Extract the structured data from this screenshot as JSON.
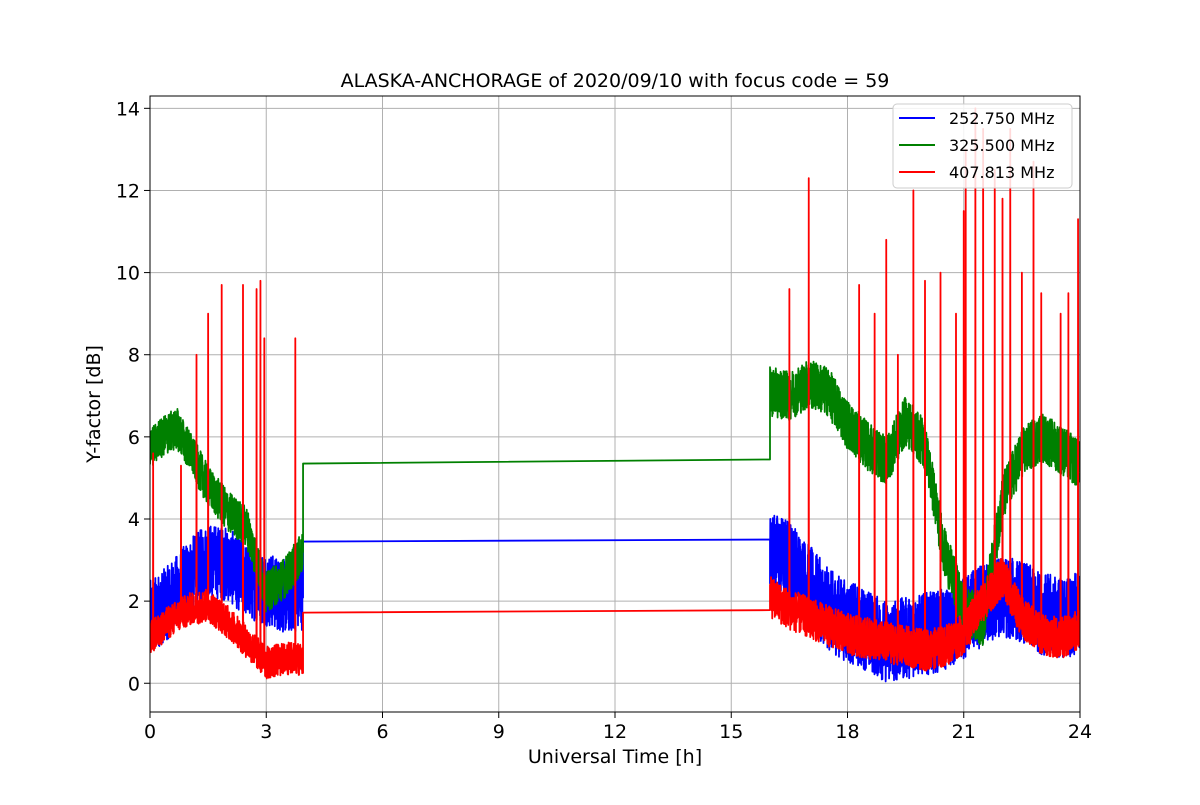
{
  "chart_data": {
    "type": "line",
    "title": "ALASKA-ANCHORAGE of 2020/09/10 with focus code = 59",
    "xlabel": "Universal Time [h]",
    "ylabel": "Y-factor [dB]",
    "xlim": [
      0,
      24
    ],
    "ylim": [
      -0.7,
      14.3
    ],
    "xticks": [
      "0",
      "3",
      "6",
      "9",
      "12",
      "15",
      "18",
      "21",
      "24"
    ],
    "yticks": [
      "0",
      "2",
      "4",
      "6",
      "8",
      "10",
      "12",
      "14"
    ],
    "grid": true,
    "legend_position": "top-right",
    "series": [
      {
        "name": "252.750 MHz",
        "color": "#0000ff",
        "segments": [
          {
            "x": [
              0,
              0.5,
              1.0,
              1.5,
              2.0,
              2.5,
              3.0,
              3.5,
              3.95
            ],
            "base": [
              1.6,
              2.0,
              2.6,
              3.0,
              2.9,
              2.5,
              2.3,
              2.1,
              2.2
            ],
            "noise": 0.9
          },
          {
            "x": [
              3.95,
              16.0
            ],
            "values": [
              3.45,
              3.5
            ]
          },
          {
            "x": [
              16.0,
              16.5,
              17.0,
              17.5,
              18.0,
              18.5,
              19.0,
              19.5,
              20.0,
              20.5,
              21.0,
              21.5,
              22.0,
              22.5,
              23.0,
              23.5,
              24.0
            ],
            "base": [
              3.2,
              3.0,
              2.4,
              1.8,
              1.5,
              1.3,
              1.0,
              1.1,
              1.2,
              1.3,
              1.6,
              1.9,
              2.1,
              2.0,
              1.7,
              1.6,
              1.7
            ],
            "noise": 1.0
          }
        ]
      },
      {
        "name": "325.500 MHz",
        "color": "#008000",
        "segments": [
          {
            "x": [
              0,
              0.3,
              0.7,
              1.0,
              1.5,
              2.0,
              2.5,
              3.0,
              3.5,
              3.95
            ],
            "base": [
              5.7,
              6.0,
              6.2,
              5.7,
              4.8,
              4.2,
              3.8,
              2.2,
              2.6,
              3.2
            ],
            "noise": 0.5
          },
          {
            "x": [
              3.95,
              16.0
            ],
            "values": [
              5.35,
              5.45
            ]
          },
          {
            "x": [
              16.0,
              16.5,
              17.0,
              17.5,
              18.0,
              18.5,
              19.0,
              19.5,
              20.0,
              20.5,
              21.0,
              21.5,
              22.0,
              22.5,
              23.0,
              23.5,
              24.0
            ],
            "base": [
              7.1,
              7.0,
              7.3,
              7.1,
              6.3,
              5.8,
              5.4,
              6.4,
              5.8,
              3.2,
              1.8,
              1.5,
              4.5,
              5.6,
              6.0,
              5.7,
              5.3
            ],
            "noise": 0.6
          }
        ]
      },
      {
        "name": "407.813 MHz",
        "color": "#ff0000",
        "segments": [
          {
            "x": [
              0,
              0.5,
              1.0,
              1.5,
              2.0,
              2.5,
              3.0,
              3.5,
              3.95
            ],
            "base": [
              1.1,
              1.5,
              1.8,
              1.9,
              1.5,
              1.0,
              0.5,
              0.6,
              0.6
            ],
            "noise": 0.4,
            "spikes": [
              [
                0.08,
                5.6
              ],
              [
                0.8,
                5.3
              ],
              [
                1.2,
                8.0
              ],
              [
                1.5,
                9.0
              ],
              [
                1.85,
                9.7
              ],
              [
                2.4,
                9.7
              ],
              [
                2.75,
                9.6
              ],
              [
                2.85,
                9.8
              ],
              [
                2.95,
                8.4
              ],
              [
                3.75,
                8.4
              ]
            ]
          },
          {
            "x": [
              3.95,
              16.0
            ],
            "values": [
              1.72,
              1.78
            ]
          },
          {
            "x": [
              16.0,
              16.5,
              17.0,
              17.5,
              18.0,
              18.5,
              19.0,
              19.5,
              20.0,
              20.5,
              21.0,
              21.5,
              22.0,
              22.5,
              23.0,
              23.5,
              24.0
            ],
            "base": [
              2.1,
              1.8,
              1.6,
              1.4,
              1.2,
              1.1,
              1.0,
              0.9,
              0.8,
              0.9,
              1.2,
              2.0,
              2.6,
              1.6,
              1.2,
              1.1,
              1.3
            ],
            "noise": 0.5,
            "spikes": [
              [
                16.5,
                9.6
              ],
              [
                17.0,
                12.3
              ],
              [
                18.3,
                9.7
              ],
              [
                18.7,
                9.0
              ],
              [
                19.0,
                10.8
              ],
              [
                19.3,
                8.0
              ],
              [
                19.7,
                12.0
              ],
              [
                20.0,
                9.8
              ],
              [
                20.4,
                10.0
              ],
              [
                20.8,
                9.0
              ],
              [
                21.0,
                11.5
              ],
              [
                21.05,
                13.0
              ],
              [
                21.3,
                14.0
              ],
              [
                21.5,
                13.5
              ],
              [
                21.8,
                12.5
              ],
              [
                22.0,
                11.8
              ],
              [
                22.2,
                13.5
              ],
              [
                22.5,
                10.0
              ],
              [
                22.8,
                12.7
              ],
              [
                23.0,
                9.5
              ],
              [
                23.5,
                9.0
              ],
              [
                23.7,
                9.5
              ],
              [
                23.95,
                11.3
              ]
            ]
          }
        ]
      }
    ]
  }
}
